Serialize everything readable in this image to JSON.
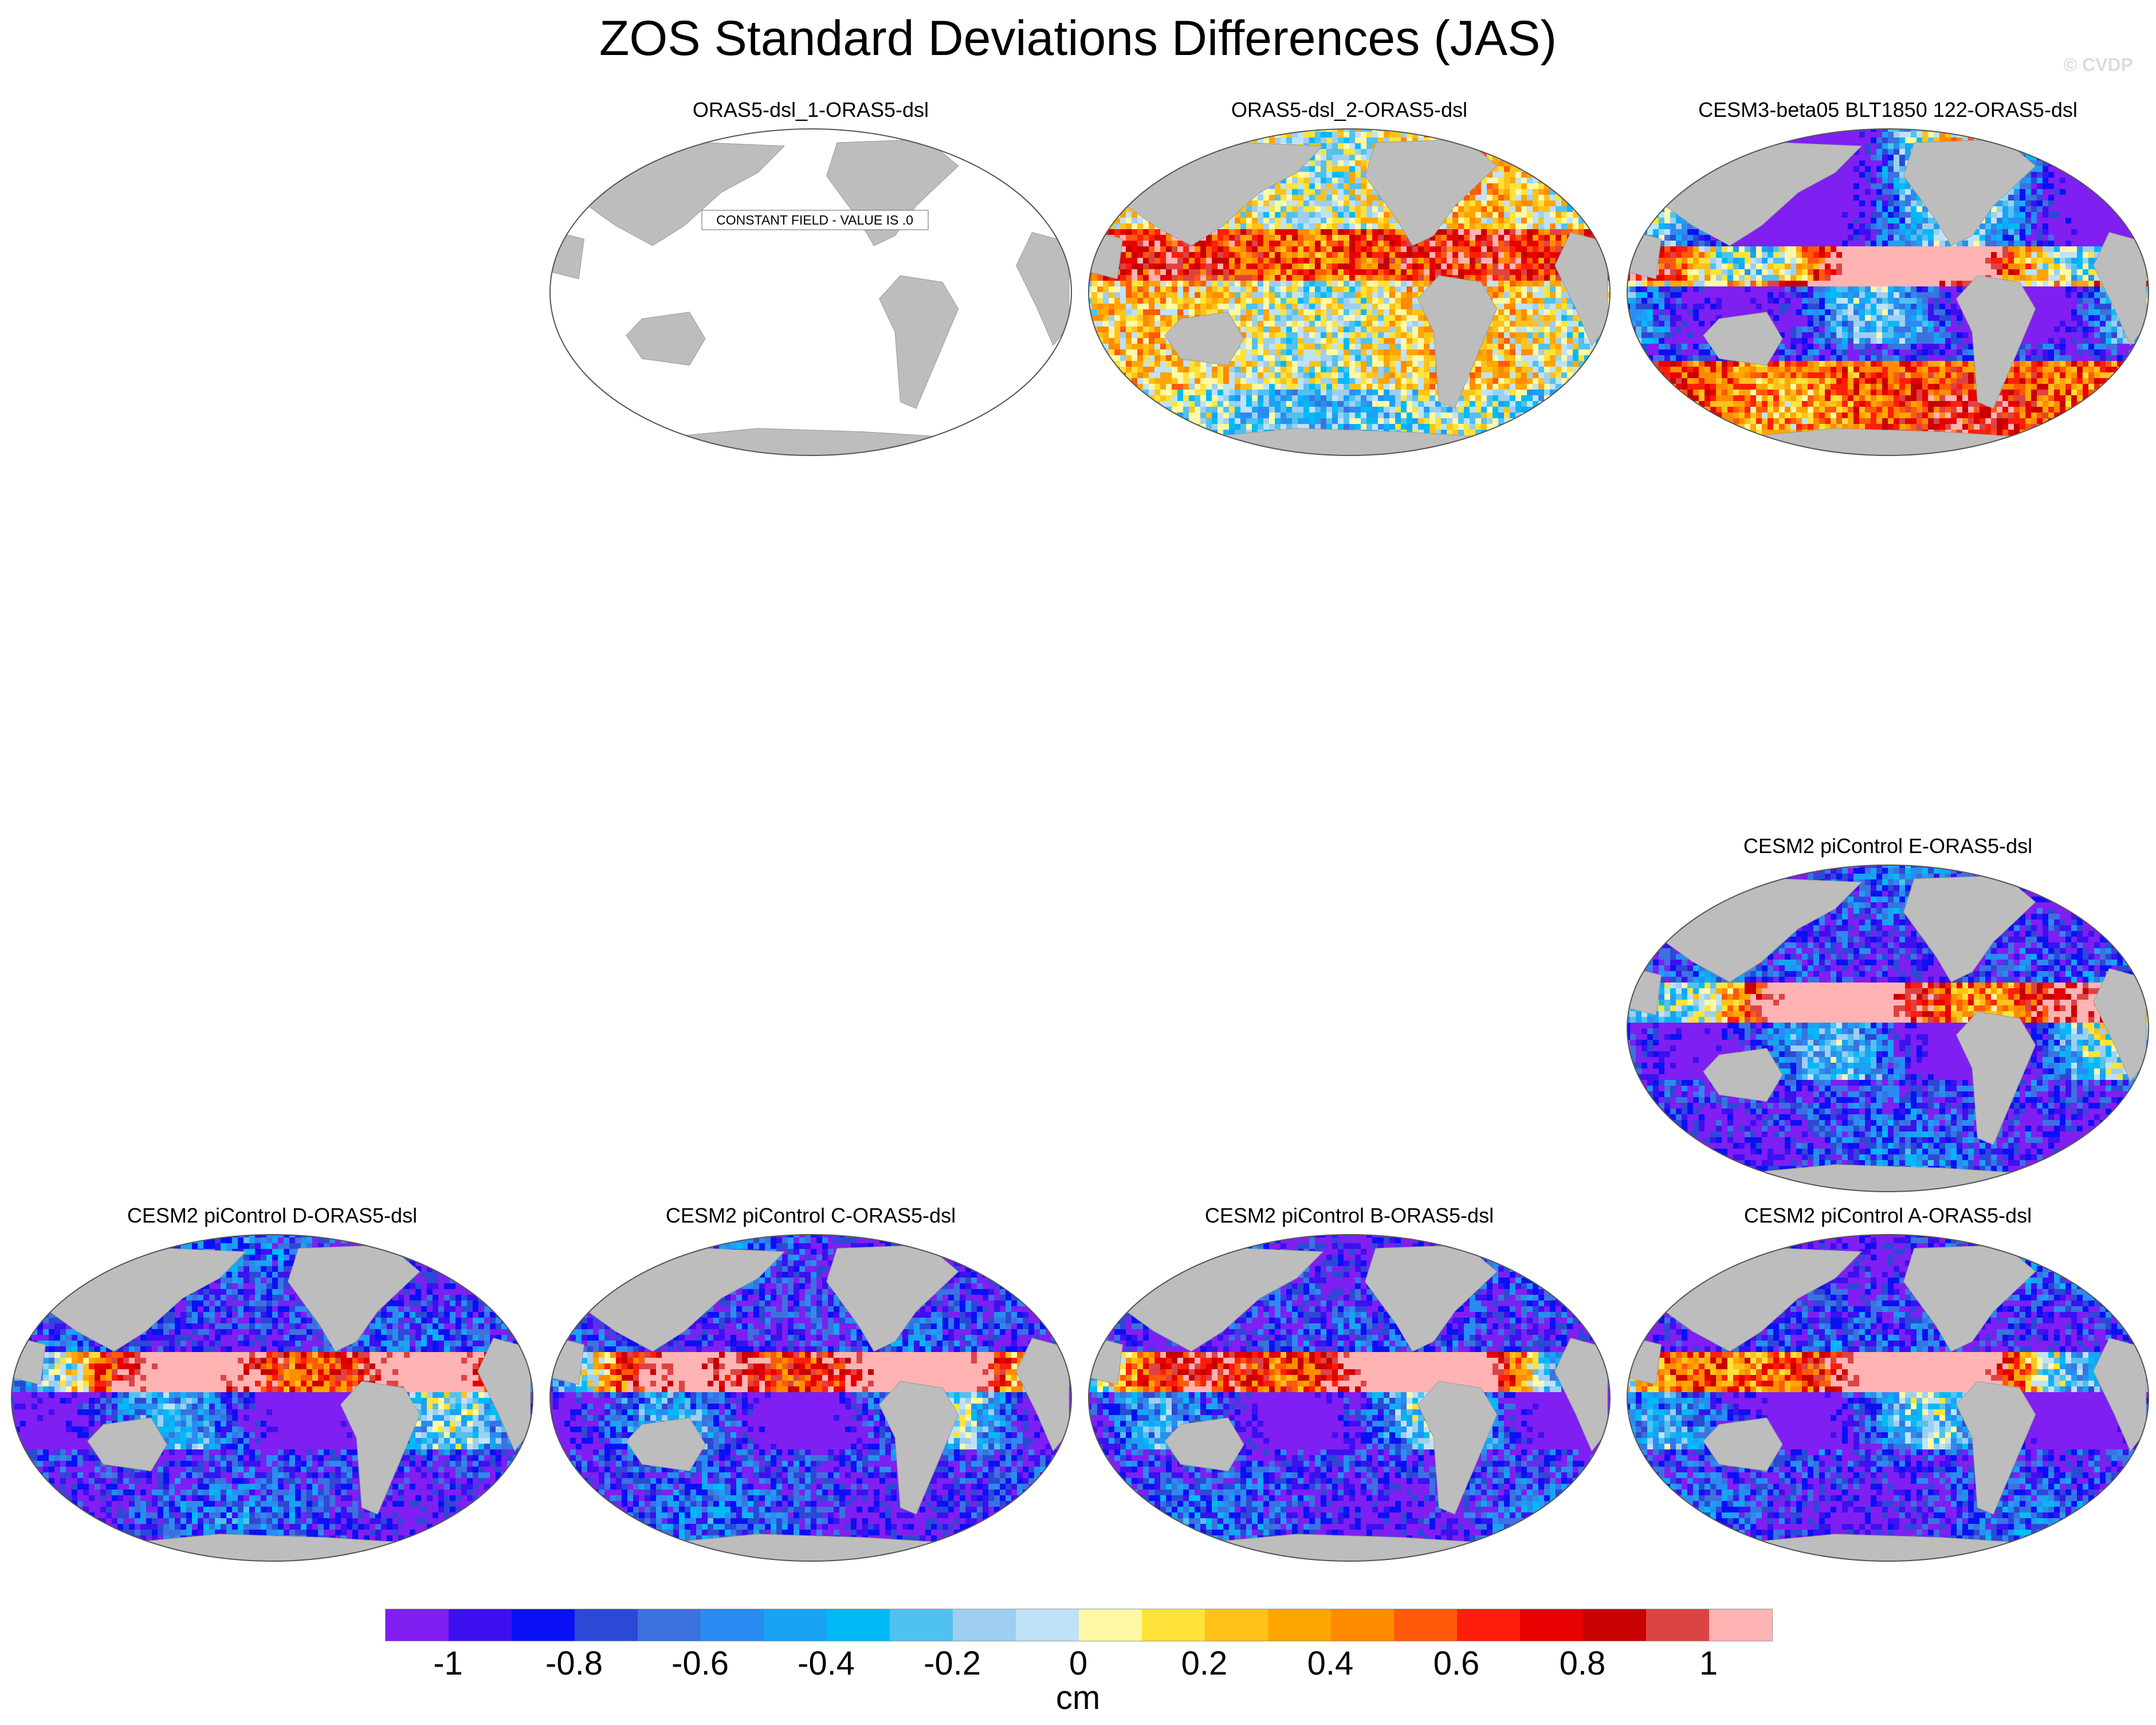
{
  "title": "ZOS Standard Deviations Differences (JAS)",
  "watermark": "© CVDP",
  "panels": [
    {
      "id": "p1",
      "label": "ORAS5-dsl_1-ORAS5-dsl",
      "constant": true,
      "note": "CONSTANT FIELD - VALUE IS .0"
    },
    {
      "id": "p2",
      "label": "ORAS5-dsl_2-ORAS5-dsl",
      "constant": false
    },
    {
      "id": "p3",
      "label": "CESM3-beta05 BLT1850 122-ORAS5-dsl",
      "constant": false
    },
    {
      "id": "p4",
      "label": "CESM2 piControl E-ORAS5-dsl",
      "constant": false
    },
    {
      "id": "p5",
      "label": "CESM2 piControl D-ORAS5-dsl",
      "constant": false
    },
    {
      "id": "p6",
      "label": "CESM2 piControl C-ORAS5-dsl",
      "constant": false
    },
    {
      "id": "p7",
      "label": "CESM2 piControl B-ORAS5-dsl",
      "constant": false
    },
    {
      "id": "p8",
      "label": "CESM2 piControl A-ORAS5-dsl",
      "constant": false
    }
  ],
  "colorbar": {
    "units": "cm",
    "colors": [
      "#7f1ff2",
      "#3d10f0",
      "#0a10f5",
      "#2c49d6",
      "#3b72e0",
      "#2a8cf2",
      "#1aa2f5",
      "#00baf7",
      "#50c2f0",
      "#9ecff0",
      "#bfe2f7",
      "#fff9a6",
      "#ffe33a",
      "#ffc21a",
      "#ffa600",
      "#ff8c00",
      "#ff5a0a",
      "#ff1e0a",
      "#e60000",
      "#c80000",
      "#dc4444",
      "#ffb3b3"
    ],
    "tick_labels": [
      "-1",
      "-0.8",
      "-0.6",
      "-0.4",
      "-0.2",
      "0",
      "0.2",
      "0.4",
      "0.6",
      "0.8",
      "1"
    ]
  }
}
